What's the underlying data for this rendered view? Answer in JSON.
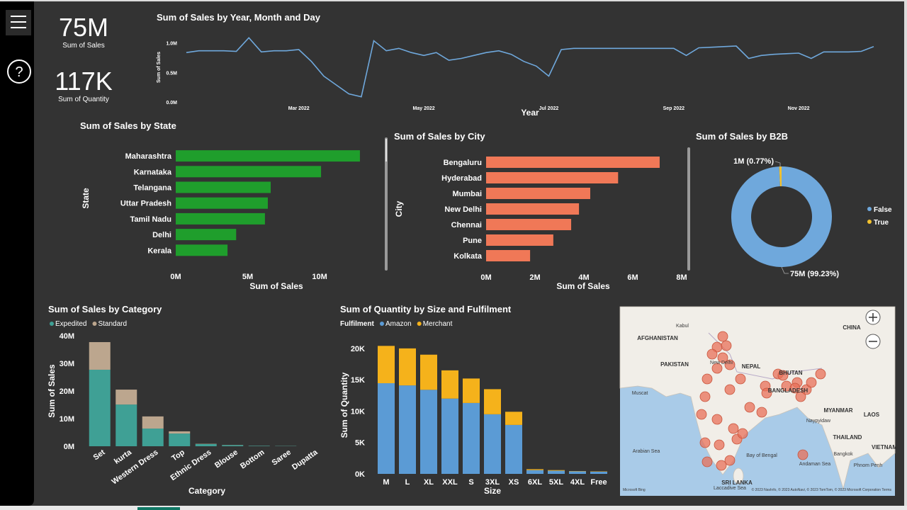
{
  "nav": {
    "help_icon": "?"
  },
  "cards": [
    {
      "value": "75M",
      "label": "Sum of Sales"
    },
    {
      "value": "117K",
      "label": "Sum of Quantity"
    }
  ],
  "chart_data": [
    {
      "type": "line",
      "title": "Sum of Sales by Year, Month and Day",
      "x_label": "Year",
      "y_label": "Sum of Sales",
      "color": "#6fa8dc",
      "categories": [
        null,
        null,
        null,
        null,
        null,
        null,
        null,
        null,
        null,
        "Mar 2022",
        null,
        null,
        null,
        null,
        null,
        null,
        null,
        null,
        null,
        "May 2022",
        null,
        null,
        null,
        null,
        null,
        null,
        null,
        null,
        null,
        "Jul 2022",
        null,
        null,
        null,
        null,
        null,
        null,
        null,
        null,
        null,
        "Sep 2022",
        null,
        null,
        null,
        null,
        null,
        null,
        null,
        null,
        null,
        "Nov 2022",
        null,
        null,
        null,
        null,
        null,
        null
      ],
      "values": [
        850000,
        880000,
        880000,
        880000,
        870000,
        1100000,
        860000,
        880000,
        880000,
        900000,
        700000,
        450000,
        300000,
        150000,
        100000,
        1050000,
        880000,
        920000,
        850000,
        800000,
        850000,
        720000,
        750000,
        800000,
        850000,
        880000,
        820000,
        700000,
        620000,
        450000,
        900000,
        920000,
        920000,
        920000,
        920000,
        920000,
        920000,
        920000,
        920000,
        920000,
        800000,
        930000,
        940000,
        950000,
        960000,
        750000,
        800000,
        820000,
        830000,
        840000,
        750000,
        860000,
        860000,
        860000,
        870000,
        950000
      ],
      "ylim": [
        0,
        1200000
      ],
      "yticks": [
        {
          "value": 0,
          "label": "0.0M"
        },
        {
          "value": 500000,
          "label": "0.5M"
        },
        {
          "value": 1000000,
          "label": "1.0M"
        }
      ]
    },
    {
      "type": "bar",
      "horizontal": true,
      "title": "Sum of Sales by State",
      "x_label": "Sum of Sales",
      "y_label": "State",
      "color": "#1f9e2c",
      "categories": [
        "Maharashtra",
        "Karnataka",
        "Telangana",
        "Uttar Pradesh",
        "Tamil Nadu",
        "Delhi",
        "Kerala"
      ],
      "values": [
        12800000,
        10100000,
        6600000,
        6400000,
        6200000,
        4200000,
        3600000
      ],
      "xlim": [
        0,
        13000000
      ],
      "xticks": [
        {
          "value": 0,
          "label": "0M"
        },
        {
          "value": 5000000,
          "label": "5M"
        },
        {
          "value": 10000000,
          "label": "10M"
        }
      ]
    },
    {
      "type": "bar",
      "horizontal": true,
      "title": "Sum of Sales by City",
      "x_label": "Sum of Sales",
      "y_label": "City",
      "color": "#f07857",
      "categories": [
        "Bengaluru",
        "Hyderabad",
        "Mumbai",
        "New Delhi",
        "Chennai",
        "Pune",
        "Kolkata"
      ],
      "values": [
        7100000,
        5400000,
        4260000,
        3800000,
        3480000,
        2750000,
        1800000
      ],
      "xlim": [
        0,
        8000000
      ],
      "xticks": [
        {
          "value": 0,
          "label": "0M"
        },
        {
          "value": 2000000,
          "label": "2M"
        },
        {
          "value": 4000000,
          "label": "4M"
        },
        {
          "value": 6000000,
          "label": "6M"
        },
        {
          "value": 8000000,
          "label": "8M"
        }
      ]
    },
    {
      "type": "pie",
      "donut": true,
      "title": "Sum of Sales by B2B",
      "categories": [
        "False",
        "True"
      ],
      "values": [
        99.23,
        0.77
      ],
      "value_labels": [
        "75M (99.23%)",
        "1M (0.77%)"
      ],
      "colors": [
        "#6fa8dc",
        "#f2c12e"
      ]
    },
    {
      "type": "bar",
      "stacked": true,
      "title": "Sum of Sales by Category",
      "x_label": "Category",
      "y_label": "Sum of Sales",
      "categories": [
        "Set",
        "kurta",
        "Western Dress",
        "Top",
        "Ethnic Dress",
        "Blouse",
        "Bottom",
        "Saree",
        "Dupatta"
      ],
      "series": [
        {
          "name": "Expedited",
          "color": "#3fa095",
          "values": [
            27700000,
            15100000,
            6400000,
            4600000,
            800000,
            400000,
            150000,
            100000,
            1000
          ]
        },
        {
          "name": "Standard",
          "color": "#bca68e",
          "values": [
            10000000,
            5400000,
            4400000,
            800000,
            100000,
            50000,
            20000,
            20000,
            0
          ]
        }
      ],
      "ylim": [
        0,
        40000000
      ],
      "yticks": [
        {
          "value": 0,
          "label": "0M"
        },
        {
          "value": 10000000,
          "label": "10M"
        },
        {
          "value": 20000000,
          "label": "20M"
        },
        {
          "value": 30000000,
          "label": "30M"
        },
        {
          "value": 40000000,
          "label": "40M"
        }
      ]
    },
    {
      "type": "bar",
      "stacked": true,
      "title": "Sum of Quantity by Size and Fulfilment",
      "legend_title": "Fulfilment",
      "x_label": "Size",
      "y_label": "Sum of Quantity",
      "categories": [
        "M",
        "L",
        "XL",
        "XXL",
        "S",
        "3XL",
        "XS",
        "6XL",
        "5XL",
        "4XL",
        "Free"
      ],
      "series": [
        {
          "name": "Amazon",
          "color": "#5b9bd5",
          "values": [
            14450,
            14100,
            13400,
            12000,
            11300,
            9500,
            7800,
            600,
            500,
            400,
            350
          ]
        },
        {
          "name": "Merchant",
          "color": "#f5b21b",
          "values": [
            5950,
            5900,
            5600,
            4500,
            3900,
            4000,
            2100,
            150,
            100,
            50,
            50
          ]
        }
      ],
      "ylim": [
        0,
        21000
      ],
      "yticks": [
        {
          "value": 0,
          "label": "0K"
        },
        {
          "value": 5000,
          "label": "5K"
        },
        {
          "value": 10000,
          "label": "10K"
        },
        {
          "value": 15000,
          "label": "15K"
        },
        {
          "value": 20000,
          "label": "20K"
        }
      ]
    }
  ],
  "map": {
    "labels": [
      "Kabul",
      "AFGHANISTAN",
      "PAKISTAN",
      "CHINA",
      "NEPAL",
      "New Delhi",
      "BHUTAN",
      "BANGLADESH",
      "MYANMAR",
      "Naypyidaw",
      "LAOS",
      "THAILAND",
      "VIETNAM",
      "Bangkok",
      "Muscat",
      "Arabian Sea",
      "Bay of Bengal",
      "Andaman Sea",
      "SRI LANKA",
      "Phnom Penh",
      "Laccadive Sea"
    ],
    "logo": "Microsoft Bing",
    "attribution": "© 2023 NavInfo, © 2023 AutoNavi, © 2023 TomTom, © 2023 Microsoft Corporation Terms"
  }
}
